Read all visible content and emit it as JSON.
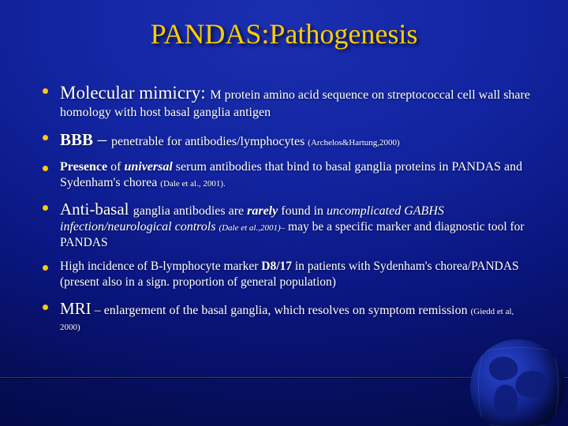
{
  "title": "PANDAS:Pathogenesis",
  "bullets": [
    {
      "lead": "Molecular mimicry: ",
      "lead_size": "lead",
      "body": "M protein amino acid sequence on streptococcal cell wall share homology with host basal ganglia antigen",
      "body_size": "body"
    },
    {
      "segments": [
        {
          "text": "BBB",
          "class": "leadsm bold"
        },
        {
          "text": " – ",
          "class": "lead"
        },
        {
          "text": "penetrable for antibodies/lymphocytes ",
          "class": "body"
        },
        {
          "text": "(Archelos&Hartung,2000)",
          "class": "tiny"
        }
      ]
    },
    {
      "segments": [
        {
          "text": "Presence",
          "class": "body bold"
        },
        {
          "text": " of  ",
          "class": "body"
        },
        {
          "text": "universal",
          "class": "body bold ital"
        },
        {
          "text": "  serum antibodies that bind to basal ganglia proteins in PANDAS and Sydenham's chorea ",
          "class": "body"
        },
        {
          "text": "(Dale et al., 2001).",
          "class": "tiny"
        }
      ]
    },
    {
      "segments": [
        {
          "text": "Anti-basal ",
          "class": "leadsm"
        },
        {
          "text": "ganglia antibodies are ",
          "class": "body"
        },
        {
          "text": "rarely",
          "class": "body bold ital"
        },
        {
          "text": " found in ",
          "class": "body"
        },
        {
          "text": "uncomplicated GABHS infection/neurological controls ",
          "class": "body ital"
        },
        {
          "text": "(Dale et al.,2001)–",
          "class": "tiny ital"
        },
        {
          "text": " may be a specific marker and diagnostic tool for PANDAS",
          "class": "bodysm"
        }
      ]
    },
    {
      "segments": [
        {
          "text": "High incidence of  B-lymphocyte marker ",
          "class": "bodysm"
        },
        {
          "text": "D8/17",
          "class": "bodysm bold"
        },
        {
          "text": " in patients with Sydenham's chorea/PANDAS (present also in a sign. proportion of general population)",
          "class": "bodysm"
        }
      ]
    },
    {
      "segments": [
        {
          "text": "MRI",
          "class": "leadsm"
        },
        {
          "text": " – enlargement of the basal ganglia, which resolves on symptom remission ",
          "class": "body"
        },
        {
          "text": "(Giedd et al, 2000)",
          "class": "tiny"
        }
      ]
    }
  ],
  "colors": {
    "title": "#ffcc00",
    "bullet": "#ffcc00",
    "text": "#ffffff"
  }
}
